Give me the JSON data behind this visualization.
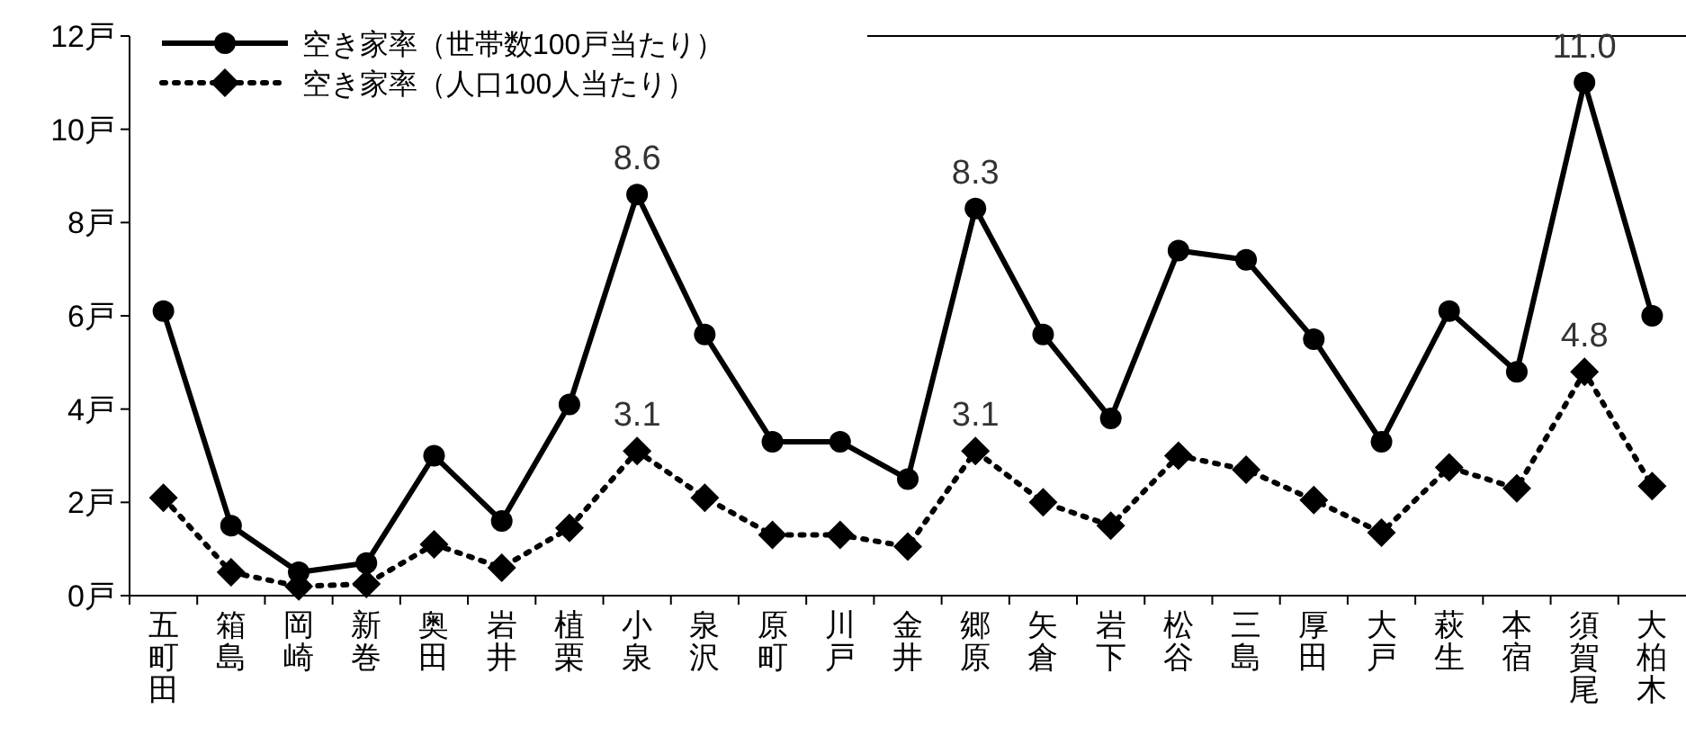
{
  "chart_data": {
    "type": "line",
    "categories": [
      "五町田",
      "箱島",
      "岡崎",
      "新巻",
      "奥田",
      "岩井",
      "植栗",
      "小泉",
      "泉沢",
      "原町",
      "川戸",
      "金井",
      "郷原",
      "矢倉",
      "岩下",
      "松谷",
      "三島",
      "厚田",
      "大戸",
      "萩生",
      "本宿",
      "須賀尾",
      "大柏木"
    ],
    "series": [
      {
        "name": "空き家率（世帯数100戸当たり）",
        "color": "#000000",
        "marker": "circle",
        "line_style": "solid",
        "values": [
          6.1,
          1.5,
          0.5,
          0.7,
          3.0,
          1.6,
          4.1,
          8.6,
          5.6,
          3.3,
          3.3,
          2.5,
          8.3,
          5.6,
          3.8,
          7.4,
          7.2,
          5.5,
          3.3,
          6.1,
          4.8,
          11.0,
          6.0
        ],
        "value_labels": [
          null,
          null,
          null,
          null,
          null,
          null,
          null,
          "8.6",
          null,
          null,
          null,
          null,
          "8.3",
          null,
          null,
          null,
          null,
          null,
          null,
          null,
          null,
          "11.0",
          null
        ]
      },
      {
        "name": "空き家率（人口100人当たり）",
        "color": "#000000",
        "marker": "diamond",
        "line_style": "dotted",
        "values": [
          2.1,
          0.5,
          0.2,
          0.25,
          1.1,
          0.6,
          1.45,
          3.1,
          2.1,
          1.3,
          1.3,
          1.05,
          3.1,
          2.0,
          1.5,
          3.0,
          2.7,
          2.05,
          1.35,
          2.75,
          2.3,
          4.8,
          2.35
        ],
        "value_labels": [
          null,
          null,
          null,
          null,
          null,
          null,
          null,
          "3.1",
          null,
          null,
          null,
          null,
          "3.1",
          null,
          null,
          null,
          null,
          null,
          null,
          null,
          null,
          "4.8",
          null
        ]
      }
    ],
    "ylim": [
      0,
      12
    ],
    "yticks": [
      {
        "value": 0,
        "label": "0戸"
      },
      {
        "value": 2,
        "label": "2戸"
      },
      {
        "value": 4,
        "label": "4戸"
      },
      {
        "value": 6,
        "label": "6戸"
      },
      {
        "value": 8,
        "label": "8戸"
      },
      {
        "value": 10,
        "label": "10戸"
      },
      {
        "value": 12,
        "label": "12戸"
      }
    ],
    "legend": "top left"
  }
}
